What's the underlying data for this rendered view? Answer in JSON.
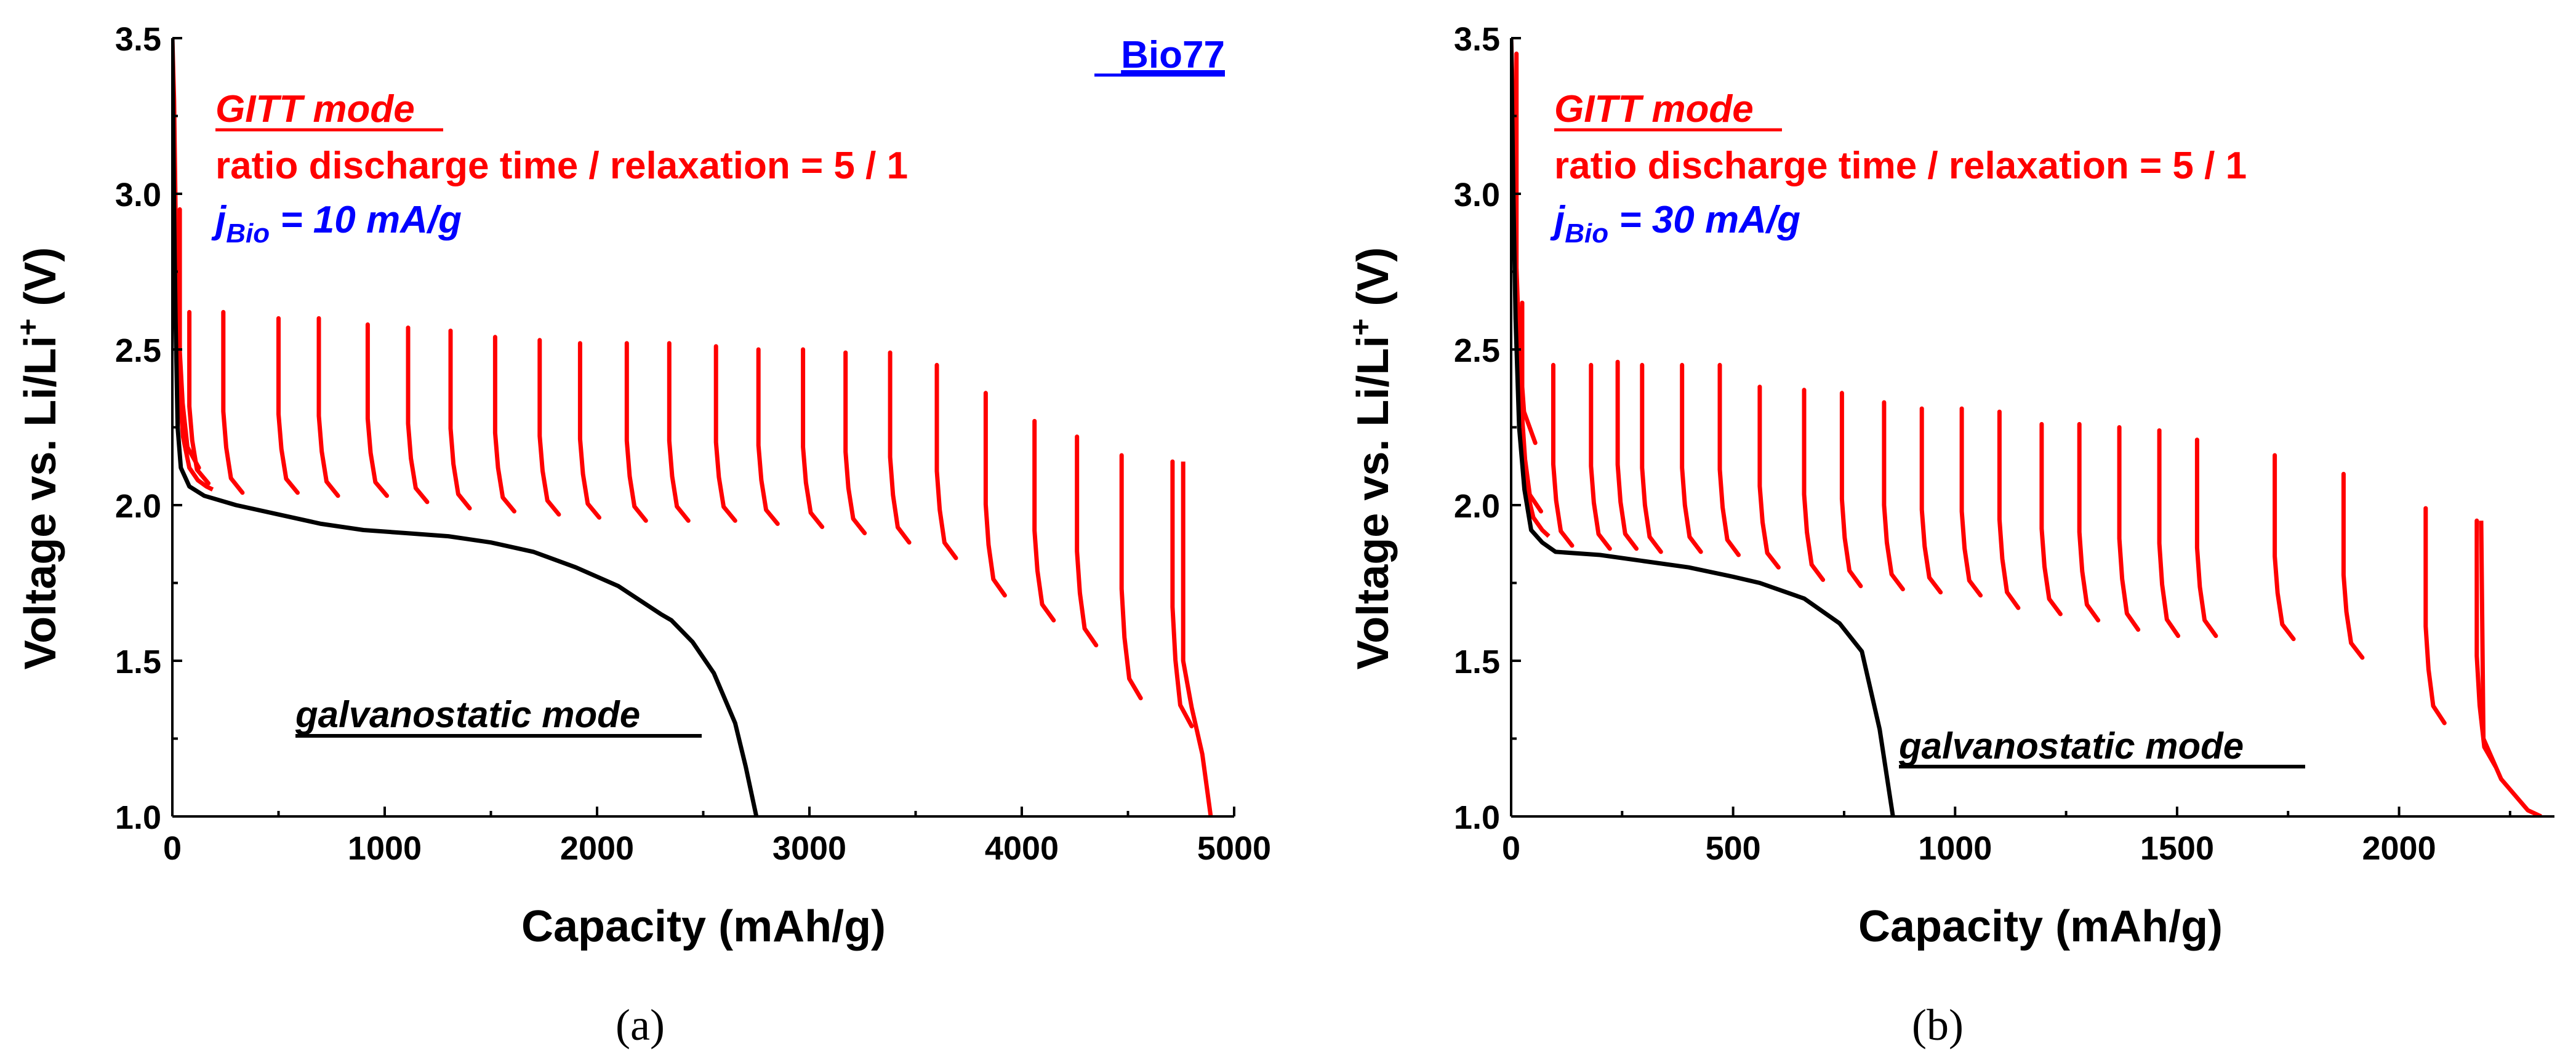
{
  "chart_data": [
    {
      "type": "line",
      "panel_label": "(a)",
      "xlabel": "Capacity (mAh/g)",
      "ylabel_parts": [
        "Voltage vs. Li/Li",
        "+",
        " (V)"
      ],
      "xlim": [
        0,
        5000
      ],
      "ylim": [
        1.0,
        3.5
      ],
      "xticks": [
        0,
        1000,
        2000,
        3000,
        4000,
        5000
      ],
      "yticks": [
        1.0,
        1.5,
        2.0,
        2.5,
        3.0,
        3.5
      ],
      "annotations": {
        "sample": "Bio77",
        "gitt_mode": "GITT mode",
        "ratio": "ratio discharge time / relaxation = 5 / 1",
        "j_base": "j",
        "j_sub": "Bio",
        "j_value": " = 10 mA/g",
        "galvano": "galvanostatic mode"
      },
      "colors": {
        "gitt": "#ff0000",
        "galvano": "#000000",
        "sample": "#0000ff"
      },
      "series": [
        {
          "name": "galvanostatic mode",
          "color": "#000000",
          "points": [
            [
              0,
              3.5
            ],
            [
              8,
              2.95
            ],
            [
              15,
              2.6
            ],
            [
              25,
              2.25
            ],
            [
              40,
              2.12
            ],
            [
              80,
              2.06
            ],
            [
              150,
              2.03
            ],
            [
              300,
              2.0
            ],
            [
              500,
              1.97
            ],
            [
              700,
              1.94
            ],
            [
              900,
              1.92
            ],
            [
              1100,
              1.91
            ],
            [
              1300,
              1.9
            ],
            [
              1500,
              1.88
            ],
            [
              1700,
              1.85
            ],
            [
              1900,
              1.8
            ],
            [
              2100,
              1.74
            ],
            [
              2300,
              1.65
            ],
            [
              2350,
              1.63
            ],
            [
              2450,
              1.56
            ],
            [
              2550,
              1.46
            ],
            [
              2650,
              1.3
            ],
            [
              2700,
              1.16
            ],
            [
              2750,
              1.0
            ]
          ]
        },
        {
          "name": "GITT mode",
          "color": "#ff0000",
          "initial": [
            [
              0,
              3.5
            ],
            [
              8,
              3.3
            ],
            [
              18,
              2.8
            ],
            [
              30,
              2.4
            ],
            [
              50,
              2.22
            ],
            [
              80,
              2.12
            ],
            [
              120,
              2.08
            ],
            [
              160,
              2.06
            ],
            [
              190,
              2.05
            ]
          ],
          "pulses": [
            {
              "x": 35,
              "peak": 2.95,
              "end": 2.12
            },
            {
              "x": 80,
              "peak": 2.62,
              "end": 2.07
            },
            {
              "x": 240,
              "peak": 2.62,
              "end": 2.04
            },
            {
              "x": 500,
              "peak": 2.6,
              "end": 2.04
            },
            {
              "x": 690,
              "peak": 2.6,
              "end": 2.03
            },
            {
              "x": 920,
              "peak": 2.58,
              "end": 2.03
            },
            {
              "x": 1110,
              "peak": 2.57,
              "end": 2.01
            },
            {
              "x": 1310,
              "peak": 2.56,
              "end": 1.99
            },
            {
              "x": 1520,
              "peak": 2.54,
              "end": 1.98
            },
            {
              "x": 1730,
              "peak": 2.53,
              "end": 1.97
            },
            {
              "x": 1920,
              "peak": 2.52,
              "end": 1.96
            },
            {
              "x": 2140,
              "peak": 2.52,
              "end": 1.95
            },
            {
              "x": 2340,
              "peak": 2.52,
              "end": 1.95
            },
            {
              "x": 2560,
              "peak": 2.51,
              "end": 1.95
            },
            {
              "x": 2760,
              "peak": 2.5,
              "end": 1.94
            },
            {
              "x": 2970,
              "peak": 2.5,
              "end": 1.93
            },
            {
              "x": 3170,
              "peak": 2.49,
              "end": 1.91
            },
            {
              "x": 3380,
              "peak": 2.49,
              "end": 1.88
            },
            {
              "x": 3600,
              "peak": 2.45,
              "end": 1.83
            },
            {
              "x": 3830,
              "peak": 2.36,
              "end": 1.71
            },
            {
              "x": 4060,
              "peak": 2.27,
              "end": 1.63
            },
            {
              "x": 4260,
              "peak": 2.22,
              "end": 1.55
            },
            {
              "x": 4470,
              "peak": 2.16,
              "end": 1.38
            },
            {
              "x": 4710,
              "peak": 2.14,
              "end": 1.29
            }
          ],
          "tail": [
            [
              4760,
              2.14
            ],
            [
              4760,
              1.5
            ],
            [
              4800,
              1.35
            ],
            [
              4850,
              1.2
            ],
            [
              4890,
              1.0
            ]
          ]
        }
      ]
    },
    {
      "type": "line",
      "panel_label": "(b)",
      "xlabel": "Capacity (mAh/g)",
      "ylabel_parts": [
        "Voltage vs. Li/Li",
        "+",
        " (V)"
      ],
      "xlim": [
        0,
        2350
      ],
      "ylim": [
        1.0,
        3.5
      ],
      "xticks": [
        0,
        500,
        1000,
        1500,
        2000
      ],
      "yticks": [
        1.0,
        1.5,
        2.0,
        2.5,
        3.0,
        3.5
      ],
      "annotations": {
        "gitt_mode": "GITT mode",
        "ratio": "ratio discharge time / relaxation = 5 / 1",
        "j_base": "j",
        "j_sub": "Bio",
        "j_value": " = 30 mA/g",
        "galvano": "galvanostatic mode"
      },
      "colors": {
        "gitt": "#ff0000",
        "galvano": "#000000"
      },
      "series": [
        {
          "name": "galvanostatic mode",
          "color": "#000000",
          "points": [
            [
              0,
              3.5
            ],
            [
              5,
              3.0
            ],
            [
              10,
              2.6
            ],
            [
              18,
              2.25
            ],
            [
              30,
              2.05
            ],
            [
              45,
              1.92
            ],
            [
              70,
              1.88
            ],
            [
              100,
              1.85
            ],
            [
              200,
              1.84
            ],
            [
              300,
              1.82
            ],
            [
              400,
              1.8
            ],
            [
              500,
              1.77
            ],
            [
              560,
              1.75
            ],
            [
              660,
              1.7
            ],
            [
              740,
              1.62
            ],
            [
              790,
              1.53
            ],
            [
              830,
              1.28
            ],
            [
              860,
              1.0
            ]
          ]
        },
        {
          "name": "GITT mode",
          "color": "#ff0000",
          "initial": [
            [
              0,
              3.5
            ],
            [
              4,
              3.3
            ],
            [
              8,
              2.9
            ],
            [
              14,
              2.5
            ],
            [
              22,
              2.2
            ],
            [
              35,
              2.05
            ],
            [
              50,
              1.96
            ],
            [
              70,
              1.92
            ],
            [
              85,
              1.9
            ]
          ],
          "pulses": [
            {
              "x": 12,
              "peak": 3.45,
              "end": 2.2
            },
            {
              "x": 25,
              "peak": 2.65,
              "end": 1.98
            },
            {
              "x": 95,
              "peak": 2.45,
              "end": 1.87
            },
            {
              "x": 180,
              "peak": 2.45,
              "end": 1.86
            },
            {
              "x": 240,
              "peak": 2.46,
              "end": 1.86
            },
            {
              "x": 295,
              "peak": 2.45,
              "end": 1.85
            },
            {
              "x": 385,
              "peak": 2.45,
              "end": 1.85
            },
            {
              "x": 470,
              "peak": 2.45,
              "end": 1.84
            },
            {
              "x": 560,
              "peak": 2.38,
              "end": 1.8
            },
            {
              "x": 660,
              "peak": 2.37,
              "end": 1.76
            },
            {
              "x": 745,
              "peak": 2.36,
              "end": 1.74
            },
            {
              "x": 840,
              "peak": 2.33,
              "end": 1.73
            },
            {
              "x": 925,
              "peak": 2.31,
              "end": 1.72
            },
            {
              "x": 1015,
              "peak": 2.31,
              "end": 1.71
            },
            {
              "x": 1100,
              "peak": 2.3,
              "end": 1.67
            },
            {
              "x": 1195,
              "peak": 2.26,
              "end": 1.65
            },
            {
              "x": 1280,
              "peak": 2.26,
              "end": 1.63
            },
            {
              "x": 1370,
              "peak": 2.25,
              "end": 1.6
            },
            {
              "x": 1460,
              "peak": 2.24,
              "end": 1.58
            },
            {
              "x": 1545,
              "peak": 2.21,
              "end": 1.58
            },
            {
              "x": 1720,
              "peak": 2.16,
              "end": 1.57
            },
            {
              "x": 1875,
              "peak": 2.1,
              "end": 1.51
            },
            {
              "x": 2060,
              "peak": 1.99,
              "end": 1.3
            },
            {
              "x": 2175,
              "peak": 1.95,
              "end": 1.16
            }
          ],
          "tail": [
            [
              2185,
              1.95
            ],
            [
              2190,
              1.25
            ],
            [
              2230,
              1.12
            ],
            [
              2290,
              1.02
            ],
            [
              2320,
              1.0
            ]
          ]
        }
      ]
    }
  ]
}
